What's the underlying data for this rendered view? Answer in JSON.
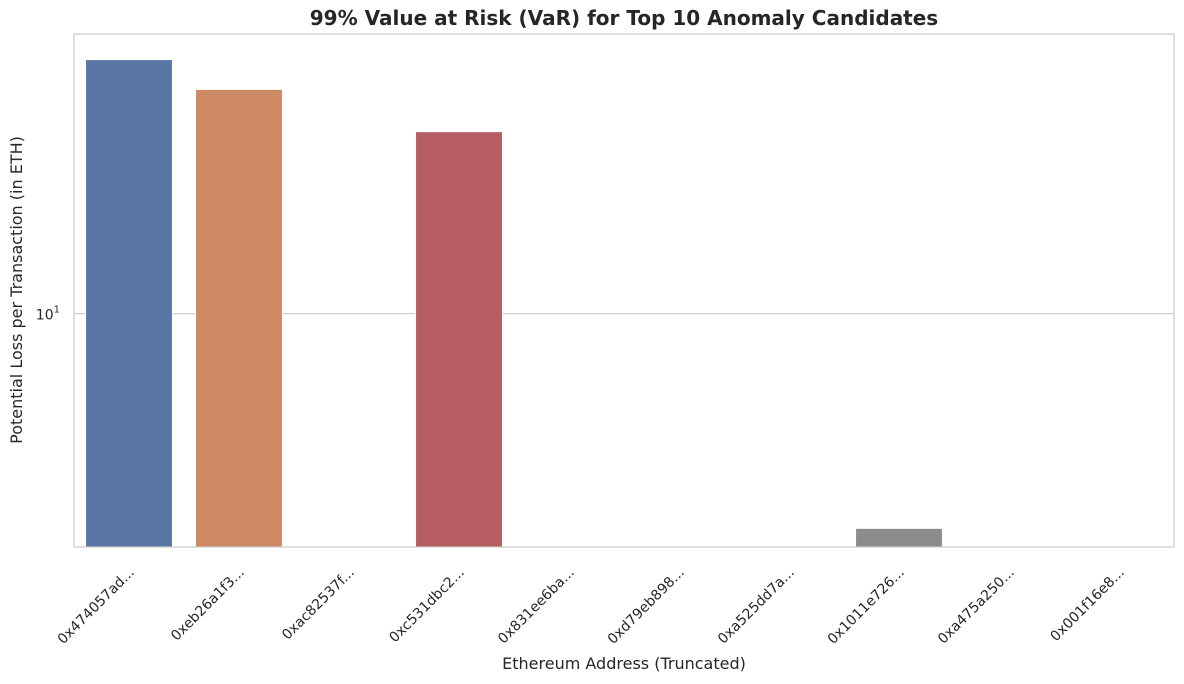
{
  "chart_data": {
    "type": "bar",
    "title": "99% Value at Risk (VaR) for Top 10 Anomaly Candidates",
    "xlabel": "Ethereum Address (Truncated)",
    "ylabel": "Potential Loss per Transaction (in ETH)",
    "y_scale": "log",
    "ylim": [
      2.8,
      46
    ],
    "y_ticks": [
      {
        "value": 10,
        "base": "10",
        "exp": "1"
      }
    ],
    "grid": "horizontal",
    "categories": [
      "0x474057ad...",
      "0xeb26a1f3...",
      "0xac82537f...",
      "0xc531dbc2...",
      "0x831ee6ba...",
      "0xd79eb898...",
      "0xa525dd7a...",
      "0x1011e726...",
      "0xa475a250...",
      "0x001f16e8..."
    ],
    "values": [
      40,
      34,
      0,
      27,
      0,
      0,
      0,
      3.1,
      0,
      0
    ],
    "colors": [
      "#5975a4",
      "#cc8963",
      "#5f9e6e",
      "#b55d60",
      "#857aab",
      "#8d7866",
      "#d095bf",
      "#8c8c8c",
      "#c1b37f",
      "#64b5cd"
    ]
  }
}
